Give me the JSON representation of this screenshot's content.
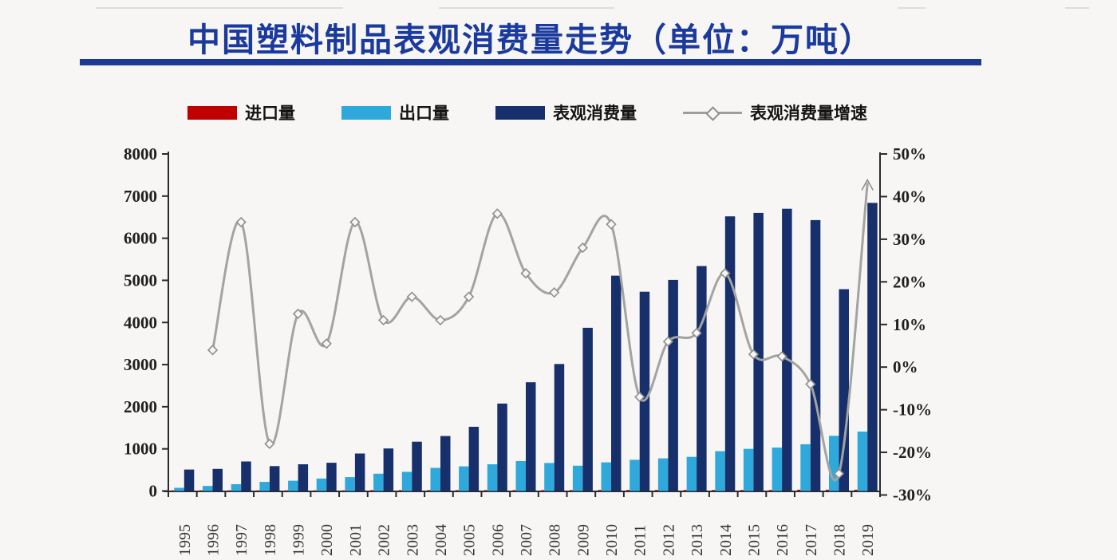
{
  "title": "中国塑料制品表观消费量走势（单位：万吨）",
  "colors": {
    "title": "#1b3a9e",
    "title_rule": "#1c3a94",
    "axis": "#2b2b2b",
    "tick_text": "#1f1f1f",
    "background": "#f7f6f5"
  },
  "legend": [
    {
      "label": "进口量",
      "color": "#c00000",
      "type": "bar"
    },
    {
      "label": "出口量",
      "color": "#2fa8dc",
      "type": "bar"
    },
    {
      "label": "表观消费量",
      "color": "#17306b",
      "type": "bar"
    },
    {
      "label": "表观消费量增速",
      "color": "#9d9d9d",
      "type": "line"
    }
  ],
  "chart_data": {
    "type": "bar+line",
    "title": "中国塑料制品表观消费量走势（单位：万吨）",
    "categories": [
      "1995",
      "1996",
      "1997",
      "1998",
      "1999",
      "2000",
      "2001",
      "2002",
      "2003",
      "2004",
      "2005",
      "2006",
      "2007",
      "2008",
      "2009",
      "2010",
      "2011",
      "2012",
      "2013",
      "2014",
      "2015",
      "2016",
      "2017",
      "2018",
      "2019"
    ],
    "series": [
      {
        "name": "进口量",
        "type": "bar",
        "axis": "left",
        "color": "#c00000",
        "values": [
          15,
          15,
          15,
          15,
          15,
          15,
          15,
          20,
          20,
          20,
          20,
          20,
          20,
          20,
          20,
          25,
          25,
          25,
          25,
          25,
          25,
          25,
          30,
          30,
          30
        ]
      },
      {
        "name": "出口量",
        "type": "bar",
        "axis": "left",
        "color": "#2fa8dc",
        "values": [
          75,
          120,
          160,
          215,
          245,
          295,
          330,
          410,
          455,
          550,
          585,
          635,
          710,
          665,
          600,
          680,
          740,
          775,
          810,
          945,
          1000,
          1030,
          1110,
          1310,
          1410
        ]
      },
      {
        "name": "表观消费量",
        "type": "bar",
        "axis": "left",
        "color": "#17306b",
        "values": [
          510,
          525,
          700,
          590,
          635,
          670,
          890,
          1010,
          1170,
          1305,
          1525,
          2075,
          2580,
          3015,
          3875,
          5110,
          4730,
          5010,
          5340,
          6520,
          6600,
          6700,
          6430,
          4790,
          6840
        ]
      },
      {
        "name": "表观消费量增速",
        "type": "line",
        "axis": "right",
        "color": "#a3a3a3",
        "values": [
          null,
          4,
          34,
          -18,
          12.5,
          5.5,
          34,
          11,
          16.5,
          11,
          16.5,
          36,
          22,
          17.5,
          28,
          33.5,
          -7,
          6,
          8,
          22,
          3,
          2.5,
          -4,
          -25,
          43
        ]
      }
    ],
    "left_axis": {
      "min": 0,
      "max": 8000,
      "tick_values": [
        8000,
        7000,
        6000,
        5000,
        4000,
        3000,
        2000,
        1000,
        0
      ],
      "tick_labels": [
        "8000",
        "7000",
        "6000",
        "5000",
        "4000",
        "3000",
        "2000",
        "1000",
        "0"
      ]
    },
    "right_axis": {
      "min": -30,
      "max": 50,
      "tick_values": [
        50,
        40,
        30,
        20,
        10,
        0,
        -10,
        -20,
        -30
      ],
      "tick_labels": [
        "50%",
        "40%",
        "30%",
        "20%",
        "10%",
        "0%",
        "-10%",
        "-20%",
        "-30%"
      ]
    },
    "grid": false,
    "legend_position": "top"
  }
}
